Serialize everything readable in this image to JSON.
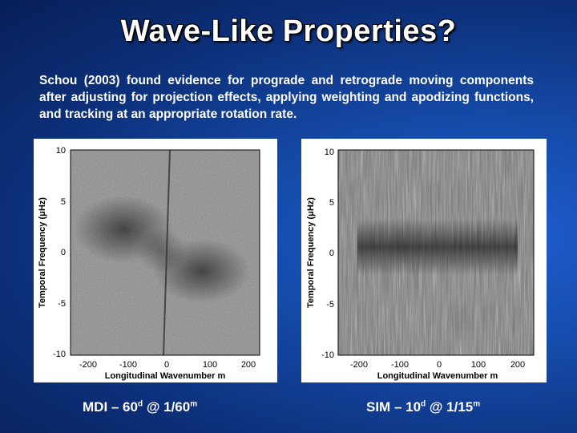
{
  "slide": {
    "title": "Wave-Like Properties?",
    "body": "Schou (2003) found evidence for prograde and retrograde moving components after adjusting for projection effects, applying weighting and apodizing functions, and tracking at an appropriate rotation rate."
  },
  "panels": [
    {
      "ylabel": "Temporal Frequency (μHz)",
      "xlabel": "Longitudinal Wavenumber m",
      "yticks": [
        "10",
        "5",
        "0",
        "-5",
        "-10"
      ],
      "xticks": [
        "-200",
        "-100",
        "0",
        "100",
        "200"
      ],
      "caption": {
        "text": "MDI – 60",
        "sup1": "d",
        "mid": " @ 1/60",
        "sup2": "m"
      }
    },
    {
      "ylabel": "Temporal Frequency (μHz)",
      "xlabel": "Longitudinal Wavenumber m",
      "yticks": [
        "10",
        "5",
        "0",
        "-5",
        "-10"
      ],
      "xticks": [
        "-200",
        "-100",
        "0",
        "100",
        "200"
      ],
      "caption": {
        "text": "SIM – 10",
        "sup1": "d",
        "mid": " @ 1/15",
        "sup2": "m"
      }
    }
  ],
  "colors": {
    "background": "#0c2f78",
    "accent": "#1f5fd0"
  }
}
